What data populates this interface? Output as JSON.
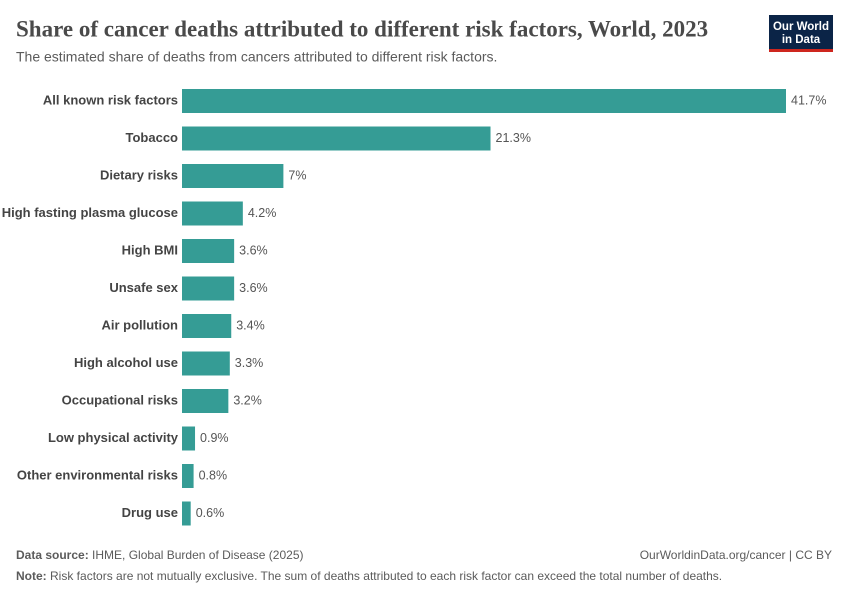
{
  "chart_data": {
    "type": "bar",
    "orientation": "horizontal",
    "title": "Share of cancer deaths attributed to different risk factors, World, 2023",
    "subtitle": "The estimated share of deaths from cancers attributed to different risk factors.",
    "categories": [
      "All known risk factors",
      "Tobacco",
      "Dietary risks",
      "High fasting plasma glucose",
      "High BMI",
      "Unsafe sex",
      "Air pollution",
      "High alcohol use",
      "Occupational risks",
      "Low physical activity",
      "Other environmental risks",
      "Drug use"
    ],
    "values": [
      41.7,
      21.3,
      7,
      4.2,
      3.6,
      3.6,
      3.4,
      3.3,
      3.2,
      0.9,
      0.8,
      0.6
    ],
    "value_labels": [
      "41.7%",
      "21.3%",
      "7%",
      "4.2%",
      "3.6%",
      "3.6%",
      "3.4%",
      "3.3%",
      "3.2%",
      "0.9%",
      "0.8%",
      "0.6%"
    ],
    "color": "#359c95"
  },
  "logo": {
    "lines": [
      "Our World",
      "in Data"
    ]
  },
  "footer": {
    "source_label": "Data source:",
    "source": "IHME, Global Burden of Disease (2025)",
    "url": "OurWorldinData.org/cancer | CC BY",
    "note_label": "Note:",
    "note": "Risk factors are not mutually exclusive. The sum of deaths attributed to each risk factor can exceed the total number of deaths."
  }
}
